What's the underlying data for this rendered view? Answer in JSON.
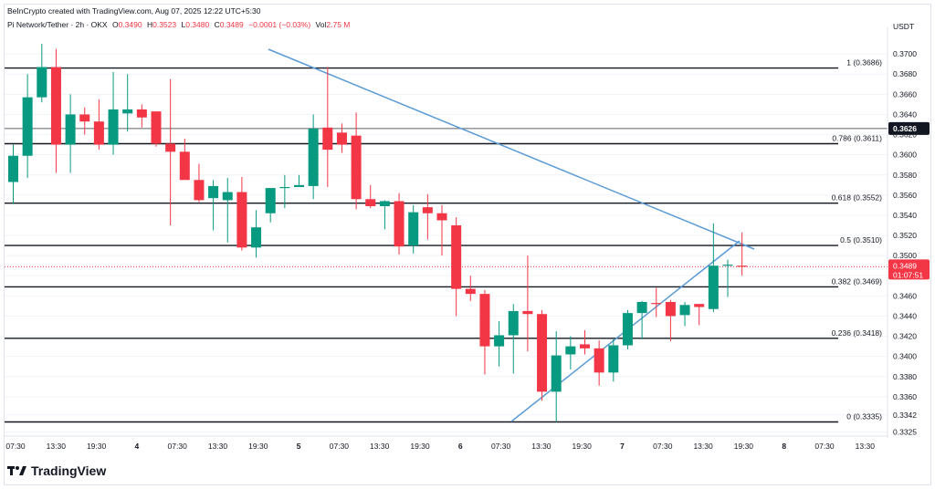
{
  "header": {
    "credit": "BeInCrypto created with TradingView.com, Aug 07, 2025 12:22 UTC+5:30",
    "symbol": "Pi Network/Tether · 2h · OKX",
    "open_label": "O",
    "open": "0.3490",
    "high_label": "H",
    "high": "0.3523",
    "low_label": "L",
    "low": "0.3480",
    "close_label": "C",
    "close": "0.3489",
    "change": "−0.0001 (−0.03%)",
    "vol_label": "Vol",
    "volume": "2.75 M"
  },
  "currency": "USDT",
  "brand": "TradingView",
  "colors": {
    "up": "#089981",
    "down": "#f23645",
    "trendline": "#5b9bd5",
    "level": "#131722",
    "grid": "#f0f3fa"
  },
  "price_axis": {
    "min": 0.3325,
    "max": 0.371,
    "ticks": [
      "0.3700",
      "0.3680",
      "0.3660",
      "0.3640",
      "0.3620",
      "0.3600",
      "0.3580",
      "0.3560",
      "0.3540",
      "0.3520",
      "0.3500",
      "0.3480",
      "0.3460",
      "0.3440",
      "0.3420",
      "0.3400",
      "0.3380",
      "0.3360",
      "0.3342",
      "0.3325"
    ],
    "current_price_label": "0.3489",
    "current_price_timer": "01:07:51",
    "marked_price_label": "0.3626"
  },
  "time_axis": {
    "labels": [
      "07:30",
      "13:30",
      "19:30",
      "4",
      "07:30",
      "13:30",
      "19:30",
      "5",
      "07:30",
      "13:30",
      "19:30",
      "6",
      "07:30",
      "13:30",
      "19:30",
      "7",
      "07:30",
      "13:30",
      "19:30",
      "8",
      "07:30",
      "13:30"
    ]
  },
  "chart_data": {
    "type": "candlestick",
    "title": "Pi Network/Tether · 2h · OKX",
    "y_range": [
      0.3325,
      0.371
    ],
    "fib_levels": [
      {
        "ratio": "1",
        "price": 0.3686,
        "label": "1 (0.3686)"
      },
      {
        "ratio": "0.786",
        "price": 0.3611,
        "label": "0.786 (0.3611)"
      },
      {
        "ratio": "0.618",
        "price": 0.3552,
        "label": "0.618 (0.3552)"
      },
      {
        "ratio": "0.5",
        "price": 0.351,
        "label": "0.5 (0.3510)"
      },
      {
        "ratio": "0.382",
        "price": 0.3469,
        "label": "0.382 (0.3469)"
      },
      {
        "ratio": "0.236",
        "price": 0.3418,
        "label": "0.236 (0.3418)"
      },
      {
        "ratio": "0",
        "price": 0.3335,
        "label": "0 (0.3335)"
      }
    ],
    "marked_line": 0.3626,
    "candles": [
      {
        "o": 0.3573,
        "h": 0.361,
        "l": 0.3551,
        "c": 0.3599
      },
      {
        "o": 0.3599,
        "h": 0.368,
        "l": 0.3577,
        "c": 0.3657
      },
      {
        "o": 0.3657,
        "h": 0.371,
        "l": 0.3652,
        "c": 0.3687
      },
      {
        "o": 0.3687,
        "h": 0.3705,
        "l": 0.3582,
        "c": 0.361
      },
      {
        "o": 0.361,
        "h": 0.366,
        "l": 0.3582,
        "c": 0.364
      },
      {
        "o": 0.364,
        "h": 0.3647,
        "l": 0.362,
        "c": 0.3633
      },
      {
        "o": 0.3633,
        "h": 0.3655,
        "l": 0.3605,
        "c": 0.361
      },
      {
        "o": 0.361,
        "h": 0.3682,
        "l": 0.36,
        "c": 0.3645
      },
      {
        "o": 0.3641,
        "h": 0.368,
        "l": 0.3623,
        "c": 0.3645
      },
      {
        "o": 0.3645,
        "h": 0.365,
        "l": 0.3627,
        "c": 0.3637
      },
      {
        "o": 0.3643,
        "h": 0.364,
        "l": 0.3608,
        "c": 0.3611
      },
      {
        "o": 0.3611,
        "h": 0.3675,
        "l": 0.353,
        "c": 0.3603
      },
      {
        "o": 0.3603,
        "h": 0.3616,
        "l": 0.3576,
        "c": 0.3575
      },
      {
        "o": 0.3575,
        "h": 0.3591,
        "l": 0.3553,
        "c": 0.3555
      },
      {
        "o": 0.3557,
        "h": 0.3575,
        "l": 0.3525,
        "c": 0.3569
      },
      {
        "o": 0.3555,
        "h": 0.3577,
        "l": 0.3513,
        "c": 0.3563
      },
      {
        "o": 0.3563,
        "h": 0.3578,
        "l": 0.3505,
        "c": 0.3508
      },
      {
        "o": 0.3508,
        "h": 0.3545,
        "l": 0.3498,
        "c": 0.3528
      },
      {
        "o": 0.3542,
        "h": 0.3566,
        "l": 0.3533,
        "c": 0.3567
      },
      {
        "o": 0.3568,
        "h": 0.358,
        "l": 0.3547,
        "c": 0.3568
      },
      {
        "o": 0.3568,
        "h": 0.358,
        "l": 0.357,
        "c": 0.357
      },
      {
        "o": 0.3569,
        "h": 0.364,
        "l": 0.3556,
        "c": 0.3626
      },
      {
        "o": 0.3627,
        "h": 0.3687,
        "l": 0.3568,
        "c": 0.3605
      },
      {
        "o": 0.3622,
        "h": 0.3631,
        "l": 0.3602,
        "c": 0.361
      },
      {
        "o": 0.3619,
        "h": 0.3642,
        "l": 0.3546,
        "c": 0.3556
      },
      {
        "o": 0.3556,
        "h": 0.357,
        "l": 0.3547,
        "c": 0.3549
      },
      {
        "o": 0.3549,
        "h": 0.3555,
        "l": 0.3526,
        "c": 0.3554
      },
      {
        "o": 0.3554,
        "h": 0.3562,
        "l": 0.3501,
        "c": 0.3509
      },
      {
        "o": 0.351,
        "h": 0.355,
        "l": 0.3502,
        "c": 0.3543
      },
      {
        "o": 0.3548,
        "h": 0.3561,
        "l": 0.3516,
        "c": 0.3542
      },
      {
        "o": 0.3542,
        "h": 0.355,
        "l": 0.35,
        "c": 0.3535
      },
      {
        "o": 0.353,
        "h": 0.3538,
        "l": 0.344,
        "c": 0.3467
      },
      {
        "o": 0.3467,
        "h": 0.348,
        "l": 0.3455,
        "c": 0.3462
      },
      {
        "o": 0.3462,
        "h": 0.3466,
        "l": 0.3382,
        "c": 0.341
      },
      {
        "o": 0.341,
        "h": 0.3435,
        "l": 0.339,
        "c": 0.3421
      },
      {
        "o": 0.3421,
        "h": 0.3452,
        "l": 0.3383,
        "c": 0.3445
      },
      {
        "o": 0.3445,
        "h": 0.35,
        "l": 0.3405,
        "c": 0.3442
      },
      {
        "o": 0.3442,
        "h": 0.3446,
        "l": 0.3356,
        "c": 0.3365
      },
      {
        "o": 0.3365,
        "h": 0.3425,
        "l": 0.3335,
        "c": 0.3401
      },
      {
        "o": 0.3402,
        "h": 0.342,
        "l": 0.3387,
        "c": 0.341
      },
      {
        "o": 0.3412,
        "h": 0.3426,
        "l": 0.3402,
        "c": 0.3408
      },
      {
        "o": 0.3408,
        "h": 0.3416,
        "l": 0.3371,
        "c": 0.3384
      },
      {
        "o": 0.3384,
        "h": 0.3417,
        "l": 0.3375,
        "c": 0.3411
      },
      {
        "o": 0.3411,
        "h": 0.3446,
        "l": 0.3407,
        "c": 0.3443
      },
      {
        "o": 0.3443,
        "h": 0.3455,
        "l": 0.3417,
        "c": 0.3454
      },
      {
        "o": 0.3453,
        "h": 0.3468,
        "l": 0.3439,
        "c": 0.3452
      },
      {
        "o": 0.3454,
        "h": 0.3456,
        "l": 0.3415,
        "c": 0.344
      },
      {
        "o": 0.3441,
        "h": 0.3454,
        "l": 0.343,
        "c": 0.3451
      },
      {
        "o": 0.3452,
        "h": 0.3452,
        "l": 0.3431,
        "c": 0.3449
      },
      {
        "o": 0.3447,
        "h": 0.3532,
        "l": 0.3444,
        "c": 0.349
      },
      {
        "o": 0.349,
        "h": 0.3496,
        "l": 0.3459,
        "c": 0.3491
      },
      {
        "o": 0.349,
        "h": 0.3523,
        "l": 0.348,
        "c": 0.3489
      }
    ]
  }
}
